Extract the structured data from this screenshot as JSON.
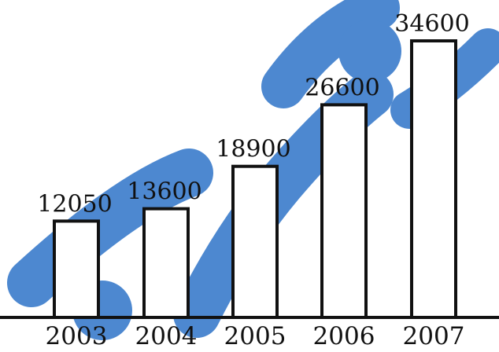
{
  "chart_data": {
    "type": "bar",
    "title": "",
    "xlabel": "",
    "ylabel": "",
    "categories": [
      "2003",
      "2004",
      "2005",
      "2006",
      "2007"
    ],
    "values": [
      12050,
      13600,
      18900,
      26600,
      34600
    ],
    "data_labels": [
      "12050",
      "13600",
      "18900",
      "26600",
      "34600"
    ],
    "ylim": [
      0,
      34600
    ],
    "grid": false,
    "legend": "none",
    "colors": {
      "bar_fill": "#ffffff",
      "bar_stroke": "#111111",
      "axis": "#111111",
      "watermark": "#2e74c8"
    }
  }
}
